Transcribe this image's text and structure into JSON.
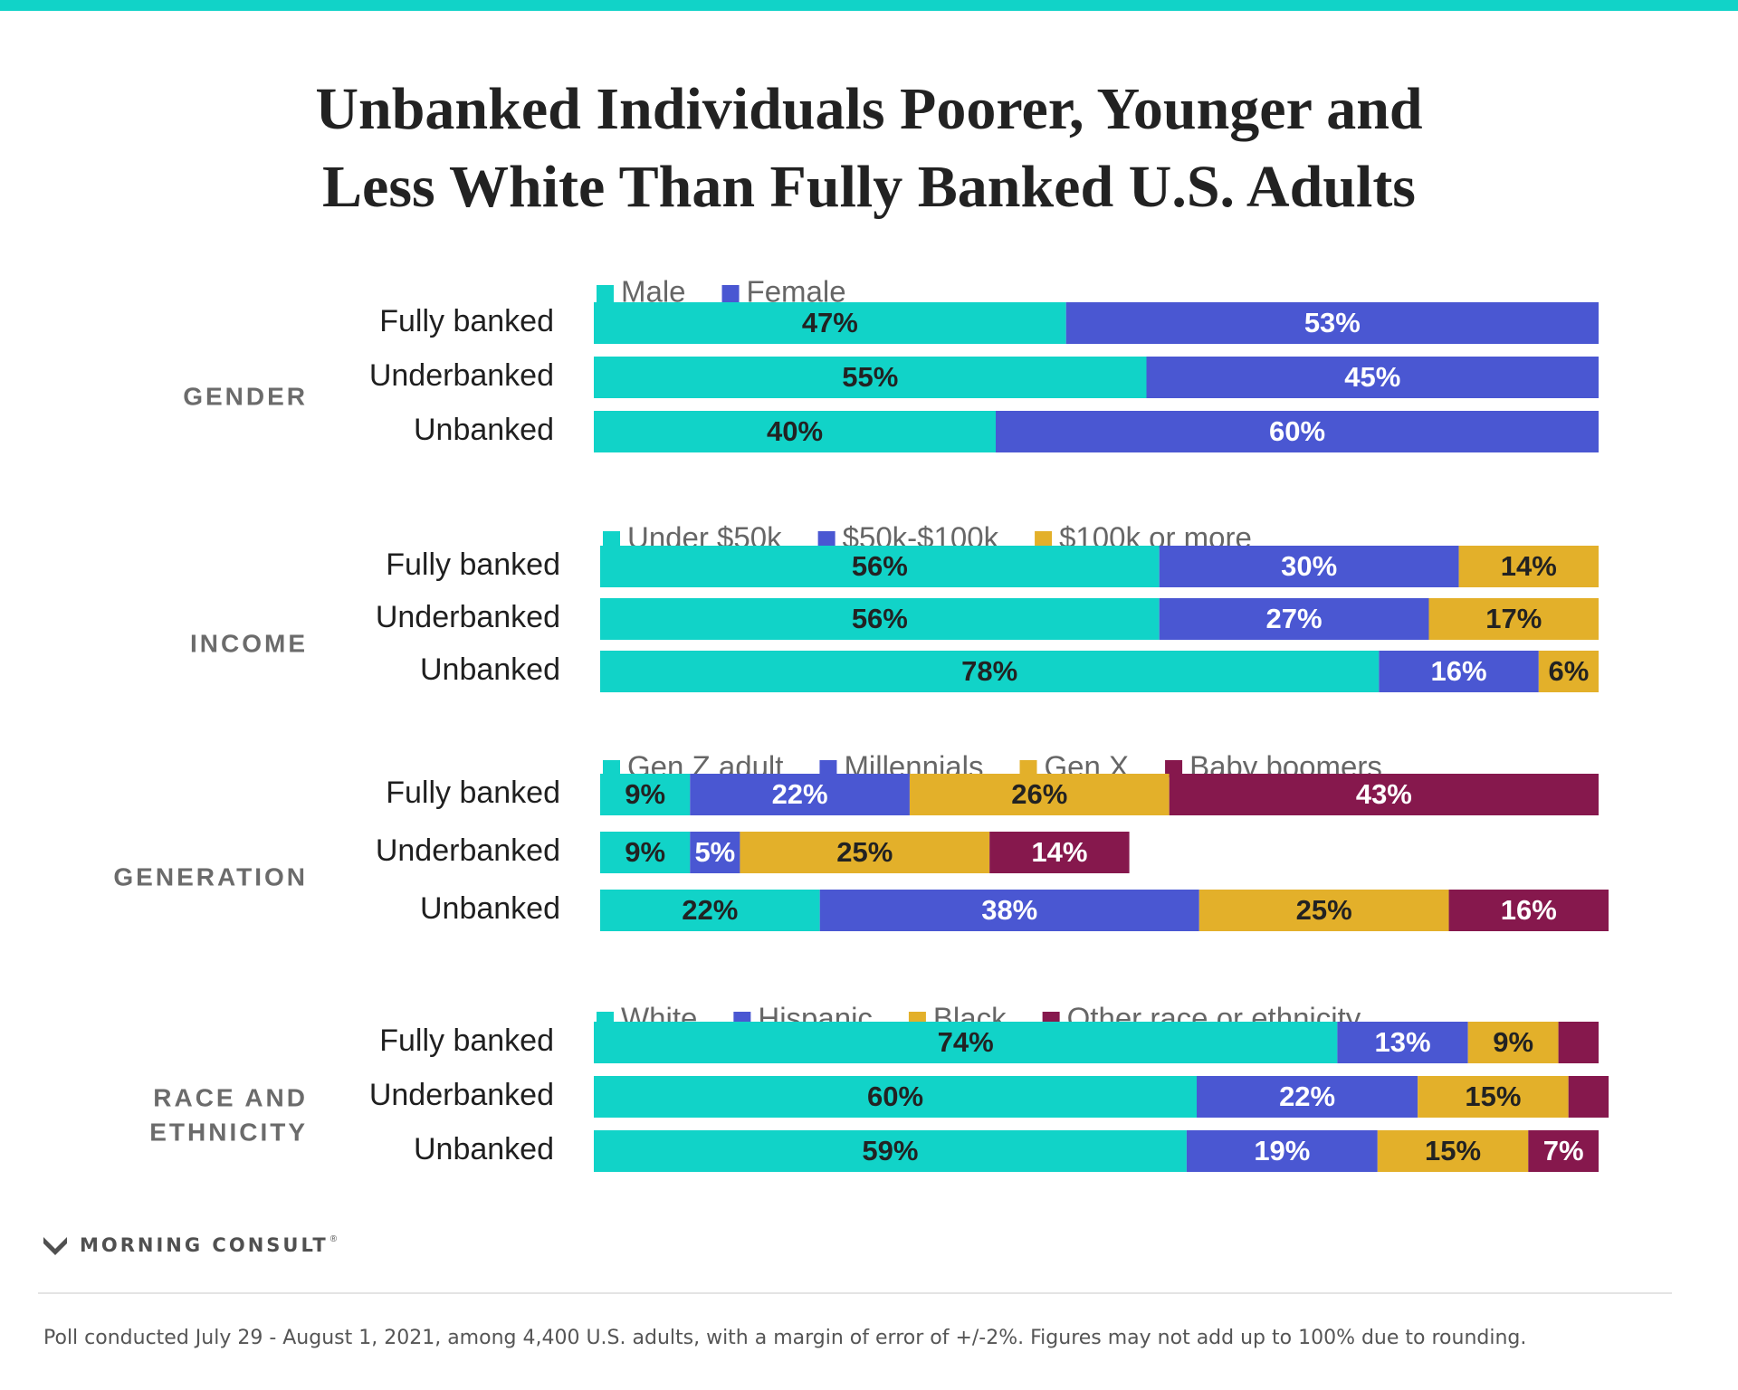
{
  "title_lines": [
    "Unbanked Individuals Poorer, Younger and",
    "Less White Than Fully Banked U.S. Adults"
  ],
  "colors": {
    "accent": "#11d3c8",
    "teal": "#11d3c8",
    "blue": "#4a57d2",
    "gold": "#e3b02a",
    "maroon": "#86184d",
    "label_dark": "#222222",
    "label_light": "#ffffff",
    "group_label": "#6b6b6b"
  },
  "chart_data": {
    "type": "bar",
    "orientation": "horizontal",
    "stacked": true,
    "normalized": true,
    "unit": "%",
    "legend_position": "top",
    "groups": [
      {
        "label": "GENDER",
        "categories": [
          "Fully banked",
          "Underbanked",
          "Unbanked"
        ],
        "series": [
          {
            "name": "Male",
            "color": "teal",
            "values": [
              47,
              55,
              40
            ]
          },
          {
            "name": "Female",
            "color": "blue",
            "values": [
              53,
              45,
              60
            ]
          }
        ]
      },
      {
        "label": "INCOME",
        "categories": [
          "Fully banked",
          "Underbanked",
          "Unbanked"
        ],
        "series": [
          {
            "name": "Under $50k",
            "color": "teal",
            "values": [
              56,
              56,
              78
            ]
          },
          {
            "name": "$50k-$100k",
            "color": "blue",
            "values": [
              30,
              27,
              16
            ]
          },
          {
            "name": "$100k or more",
            "color": "gold",
            "values": [
              14,
              17,
              6
            ]
          }
        ]
      },
      {
        "label": "GENERATION",
        "categories": [
          "Fully banked",
          "Underbanked",
          "Unbanked"
        ],
        "series": [
          {
            "name": "Gen Z adult",
            "color": "teal",
            "values": [
              9,
              9,
              22
            ]
          },
          {
            "name": "Millennials",
            "color": "blue",
            "values": [
              22,
              5,
              38
            ]
          },
          {
            "name": "Gen X",
            "color": "gold",
            "values": [
              26,
              25,
              25
            ]
          },
          {
            "name": "Baby boomers",
            "color": "maroon",
            "values": [
              43,
              14,
              16
            ]
          }
        ]
      },
      {
        "label": "RACE AND ETHNICITY",
        "label_lines": [
          "RACE AND",
          "ETHNICITY"
        ],
        "categories": [
          "Fully banked",
          "Underbanked",
          "Unbanked"
        ],
        "series": [
          {
            "name": "White",
            "color": "teal",
            "values": [
              74,
              60,
              59
            ]
          },
          {
            "name": "Hispanic",
            "color": "blue",
            "values": [
              13,
              22,
              19
            ]
          },
          {
            "name": "Black",
            "color": "gold",
            "values": [
              9,
              15,
              15
            ]
          },
          {
            "name": "Other race or ethnicity",
            "color": "maroon",
            "values": [
              4,
              4,
              7
            ]
          }
        ],
        "hidden_labels": [
          [
            false,
            false,
            false,
            true
          ],
          [
            false,
            false,
            false,
            true
          ],
          [
            false,
            false,
            false,
            false
          ]
        ]
      }
    ]
  },
  "brand": {
    "name": "MORNING CONSULT",
    "mark": "®"
  },
  "footnote": "Poll conducted July 29 - August 1, 2021, among 4,400 U.S. adults, with a margin of error of +/-2%. Figures may not add up to 100% due to rounding."
}
